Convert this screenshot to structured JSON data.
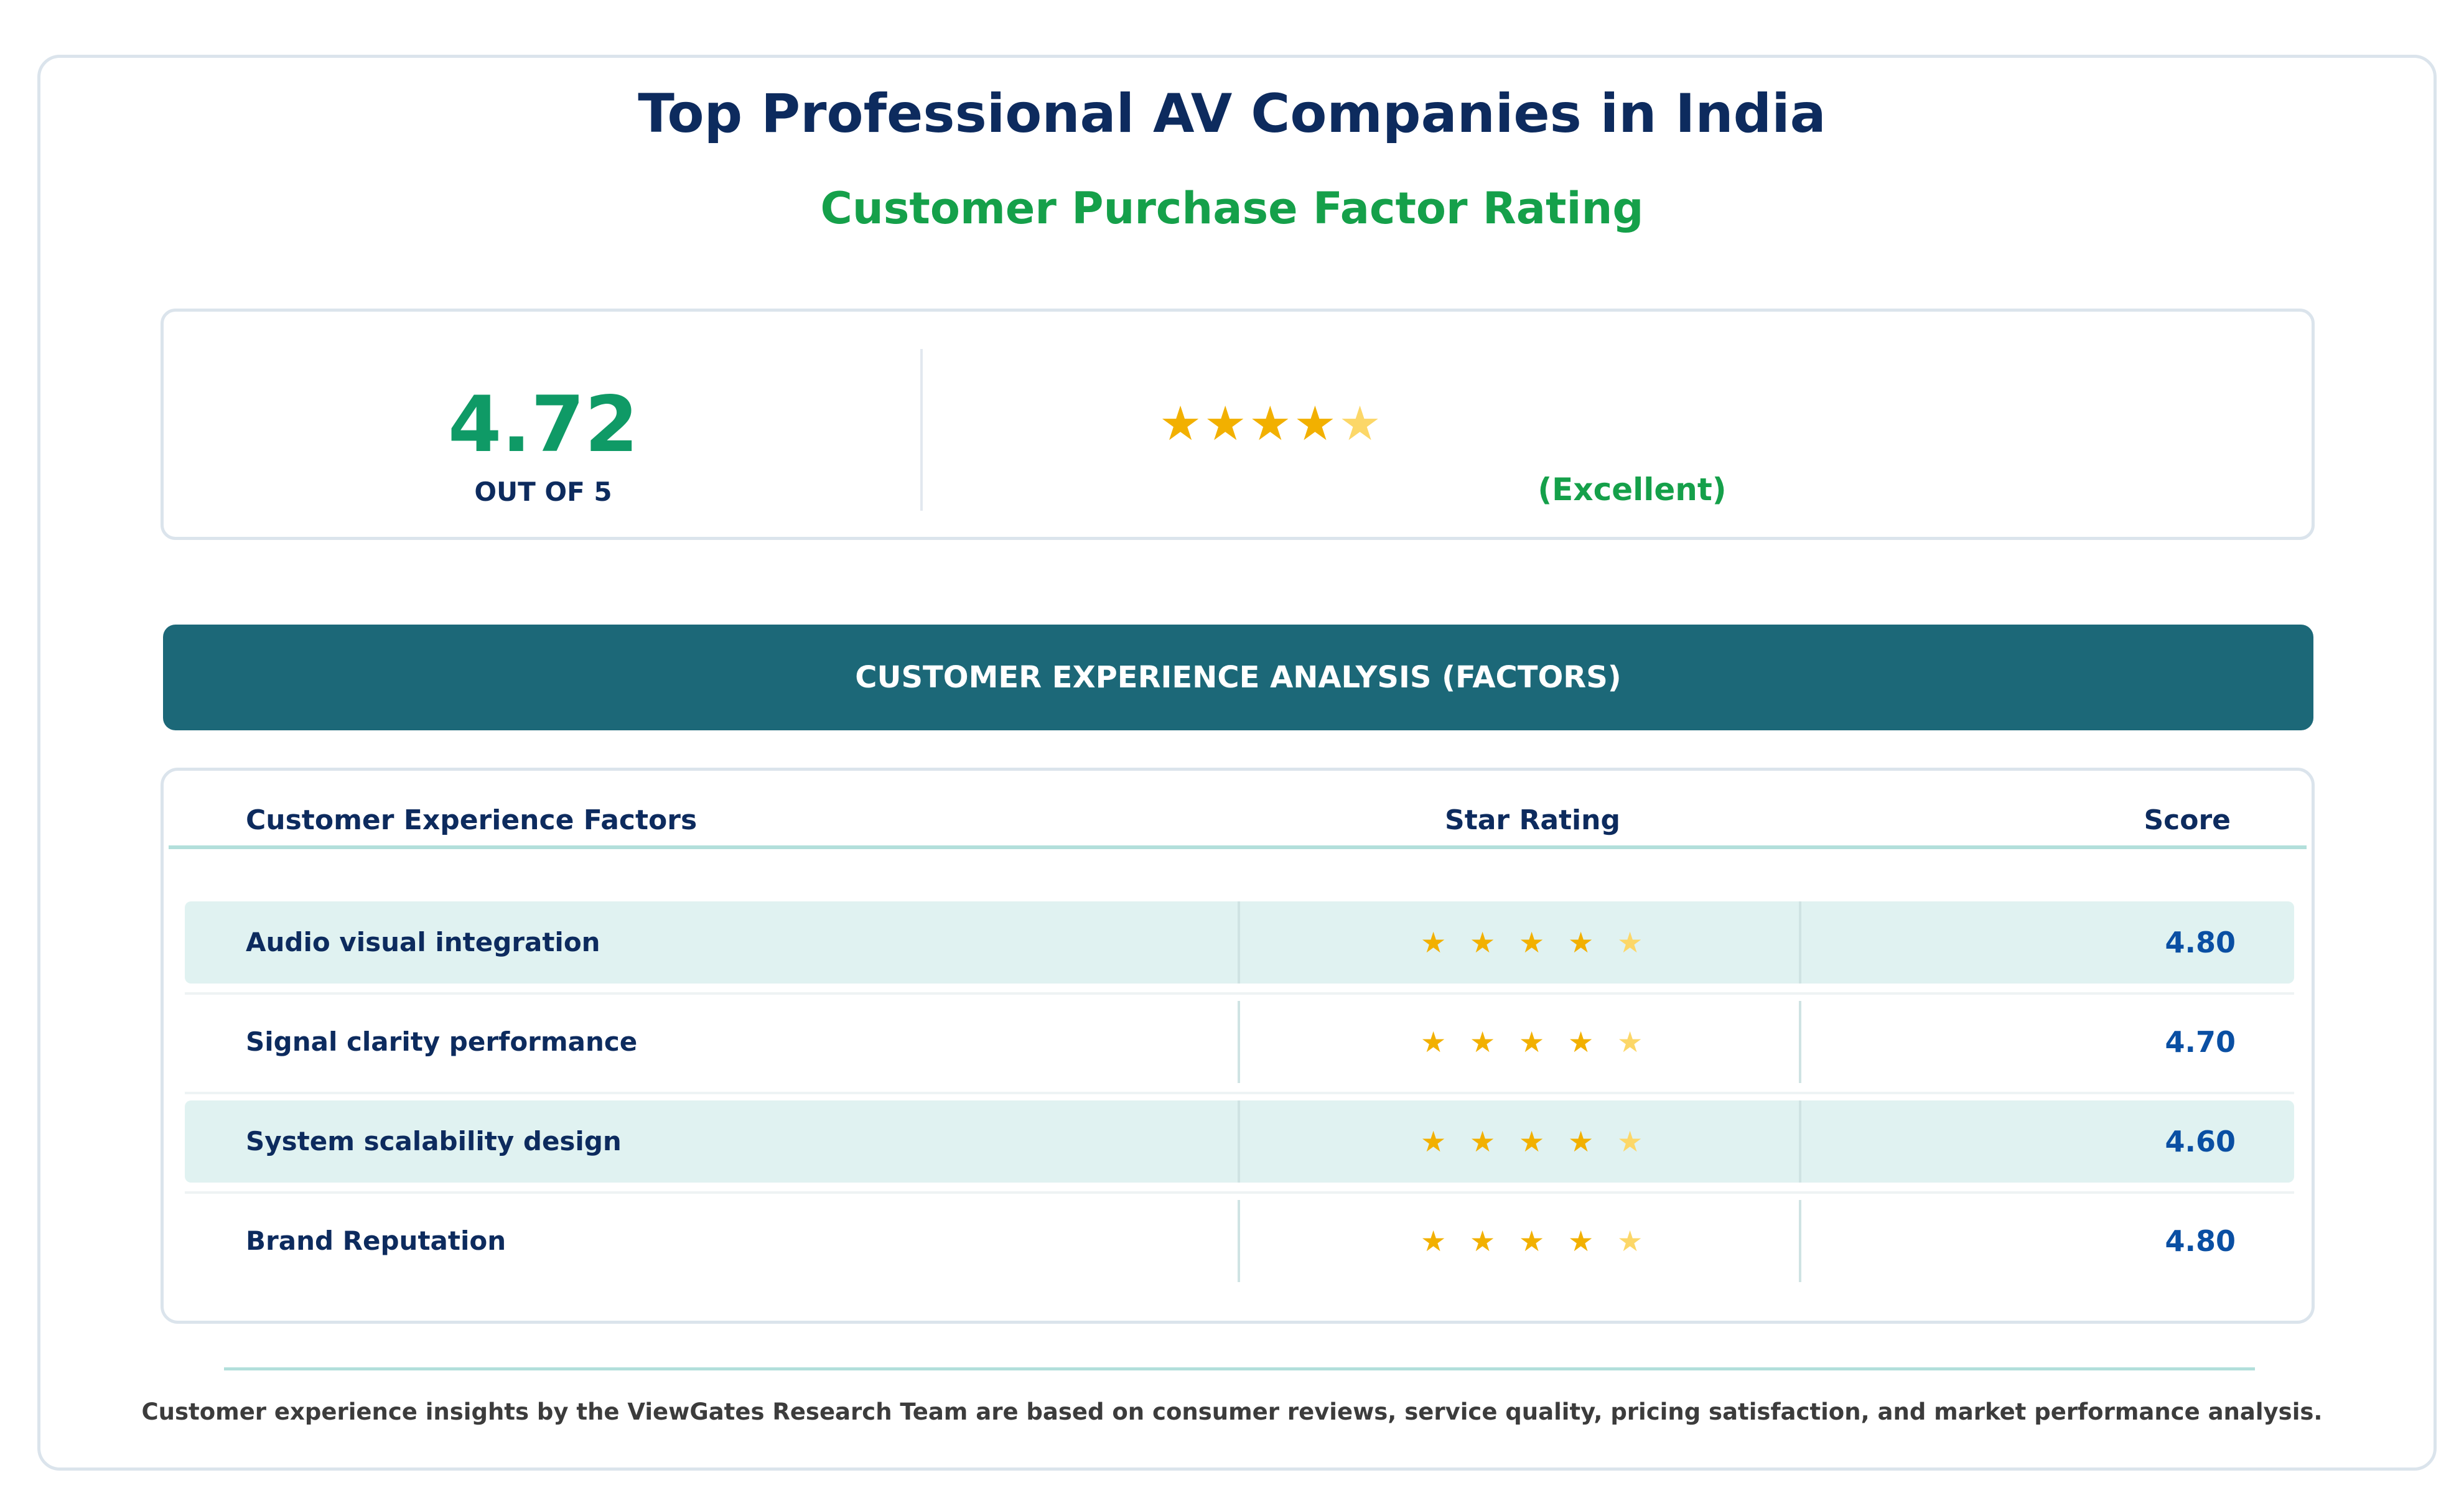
{
  "header": {
    "title": "Top Professional AV Companies in India",
    "subtitle": "Customer Purchase Factor Rating"
  },
  "summary": {
    "score": "4.72",
    "scale_label": "OUT OF 5",
    "stars": "★★★★",
    "partial_star": "★",
    "rating_fraction": 0.944,
    "rating_label": "(Excellent)"
  },
  "section": {
    "banner": "CUSTOMER EXPERIENCE ANALYSIS (FACTORS)"
  },
  "table": {
    "columns": [
      "Customer Experience Factors",
      "Star Rating",
      "Score"
    ],
    "rows": [
      {
        "factor": "Audio visual integration",
        "stars": [
          "★",
          "★",
          "★",
          "★",
          "★"
        ],
        "score": "4.80"
      },
      {
        "factor": "Signal clarity performance",
        "stars": [
          "★",
          "★",
          "★",
          "★",
          "★"
        ],
        "score": "4.70"
      },
      {
        "factor": "System scalability design",
        "stars": [
          "★",
          "★",
          "★",
          "★",
          "★"
        ],
        "score": "4.60"
      },
      {
        "factor": "Brand Reputation",
        "stars": [
          "★",
          "★",
          "★",
          "★",
          "★"
        ],
        "score": "4.80"
      }
    ]
  },
  "footer": {
    "note": "Customer experience insights by the ViewGates Research Team are based on consumer reviews, service quality, pricing satisfaction, and market performance analysis."
  },
  "colors": {
    "title": "#0d2b5e",
    "accent_green": "#15a04a",
    "score_green": "#0f9a66",
    "banner": "#1c6878",
    "star": "#f2b000",
    "score_blue": "#0a4fa3"
  }
}
